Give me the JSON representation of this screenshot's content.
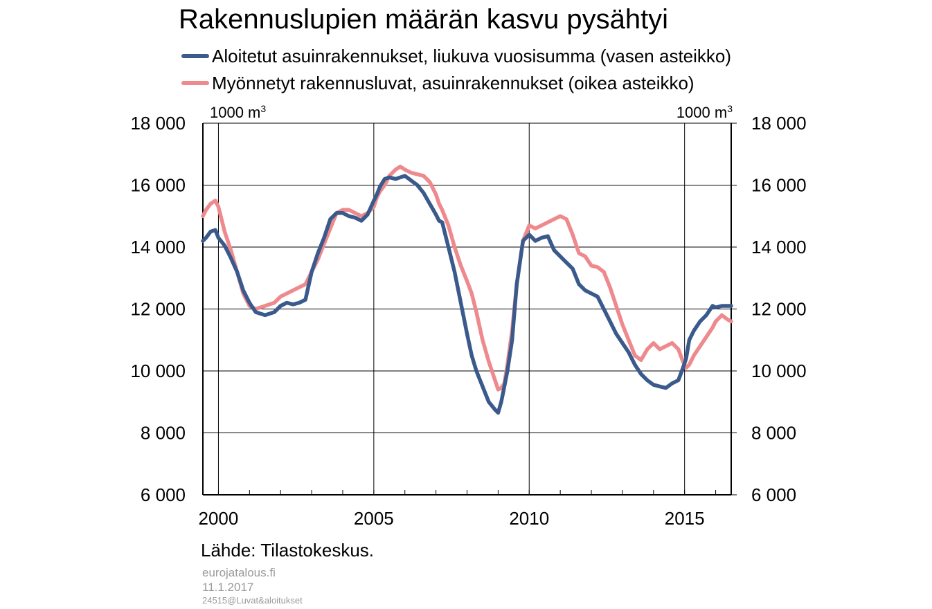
{
  "chart_data": {
    "type": "line",
    "title": "Rakennuslupien määrän kasvu pysähtyi",
    "y_left_unit": "1000 m",
    "y_right_unit": "1000 m",
    "unit_superscript": "3",
    "x_ticks": [
      "2000",
      "2005",
      "2010",
      "2015"
    ],
    "y_ticks": [
      "6 000",
      "8 000",
      "10 000",
      "12 000",
      "14 000",
      "16 000",
      "18 000"
    ],
    "ylim": [
      6000,
      18000
    ],
    "xlim": [
      1999.5,
      2016.5
    ],
    "grid": true,
    "legend_position": "top",
    "series": [
      {
        "name": "Aloitetut asuinrakennukset, liukuva vuosisumma (vasen asteikko)",
        "color": "#3b5a8c",
        "axis": "left",
        "x": [
          1999.5,
          1999.6,
          1999.75,
          1999.9,
          2000.0,
          2000.2,
          2000.4,
          2000.6,
          2000.8,
          2001.0,
          2001.2,
          2001.5,
          2001.8,
          2002.0,
          2002.2,
          2002.4,
          2002.6,
          2002.8,
          2003.0,
          2003.2,
          2003.4,
          2003.6,
          2003.8,
          2004.0,
          2004.2,
          2004.4,
          2004.6,
          2004.8,
          2005.0,
          2005.1,
          2005.2,
          2005.35,
          2005.5,
          2005.7,
          2005.85,
          2006.0,
          2006.2,
          2006.4,
          2006.6,
          2006.8,
          2007.0,
          2007.1,
          2007.2,
          2007.4,
          2007.6,
          2007.8,
          2008.0,
          2008.15,
          2008.3,
          2008.5,
          2008.7,
          2008.9,
          2009.0,
          2009.1,
          2009.2,
          2009.3,
          2009.45,
          2009.6,
          2009.8,
          2010.0,
          2010.2,
          2010.4,
          2010.6,
          2010.8,
          2011.0,
          2011.2,
          2011.4,
          2011.6,
          2011.8,
          2012.0,
          2012.2,
          2012.4,
          2012.6,
          2012.8,
          2013.0,
          2013.2,
          2013.4,
          2013.6,
          2013.8,
          2014.0,
          2014.2,
          2014.4,
          2014.6,
          2014.8,
          2014.95,
          2015.05,
          2015.15,
          2015.3,
          2015.5,
          2015.7,
          2015.9,
          2016.0,
          2016.2,
          2016.4,
          2016.5
        ],
        "y": [
          14200,
          14300,
          14500,
          14550,
          14300,
          14050,
          13650,
          13200,
          12600,
          12200,
          11900,
          11800,
          11900,
          12100,
          12200,
          12150,
          12200,
          12300,
          13200,
          13800,
          14300,
          14900,
          15100,
          15100,
          15000,
          14950,
          14850,
          15050,
          15500,
          15700,
          15950,
          16200,
          16250,
          16200,
          16250,
          16300,
          16150,
          16000,
          15750,
          15400,
          15050,
          14850,
          14800,
          14000,
          13200,
          12200,
          11200,
          10500,
          10000,
          9500,
          9000,
          8750,
          8650,
          9000,
          9500,
          10000,
          11000,
          12800,
          14200,
          14400,
          14200,
          14300,
          14350,
          13900,
          13700,
          13500,
          13300,
          12800,
          12600,
          12500,
          12400,
          12000,
          11600,
          11200,
          10900,
          10600,
          10200,
          9900,
          9700,
          9550,
          9500,
          9450,
          9600,
          9700,
          10100,
          10400,
          11000,
          11300,
          11600,
          11800,
          12100,
          12050,
          12100,
          12100,
          12100
        ]
      },
      {
        "name": "Myönnetyt rakennusluvat, asuinrakennukset (oikea asteikko)",
        "color": "#ee8a8e",
        "axis": "right",
        "x": [
          1999.5,
          1999.6,
          1999.75,
          1999.9,
          2000.0,
          2000.2,
          2000.4,
          2000.6,
          2000.8,
          2001.0,
          2001.2,
          2001.5,
          2001.8,
          2002.0,
          2002.2,
          2002.4,
          2002.6,
          2002.8,
          2003.0,
          2003.2,
          2003.4,
          2003.6,
          2003.8,
          2004.0,
          2004.2,
          2004.4,
          2004.6,
          2004.8,
          2005.0,
          2005.1,
          2005.2,
          2005.35,
          2005.5,
          2005.7,
          2005.85,
          2006.0,
          2006.2,
          2006.4,
          2006.6,
          2006.8,
          2007.0,
          2007.1,
          2007.2,
          2007.4,
          2007.6,
          2007.8,
          2008.0,
          2008.15,
          2008.3,
          2008.5,
          2008.7,
          2008.9,
          2009.0,
          2009.1,
          2009.2,
          2009.3,
          2009.45,
          2009.6,
          2009.8,
          2010.0,
          2010.2,
          2010.4,
          2010.6,
          2010.8,
          2011.0,
          2011.2,
          2011.4,
          2011.6,
          2011.8,
          2012.0,
          2012.2,
          2012.4,
          2012.6,
          2012.8,
          2013.0,
          2013.2,
          2013.4,
          2013.6,
          2013.8,
          2014.0,
          2014.2,
          2014.4,
          2014.6,
          2014.8,
          2014.95,
          2015.05,
          2015.15,
          2015.3,
          2015.5,
          2015.7,
          2015.9,
          2016.0,
          2016.2,
          2016.4,
          2016.5
        ],
        "y": [
          15000,
          15200,
          15400,
          15500,
          15300,
          14500,
          13900,
          13200,
          12500,
          12100,
          12000,
          12100,
          12200,
          12400,
          12500,
          12600,
          12700,
          12800,
          13200,
          13600,
          14100,
          14600,
          15100,
          15200,
          15200,
          15100,
          15000,
          15100,
          15300,
          15600,
          15800,
          16000,
          16300,
          16500,
          16600,
          16500,
          16400,
          16350,
          16300,
          16100,
          15700,
          15400,
          15200,
          14700,
          14000,
          13400,
          12900,
          12500,
          11900,
          11000,
          10300,
          9700,
          9400,
          9450,
          9600,
          10200,
          11300,
          12800,
          14200,
          14700,
          14600,
          14700,
          14800,
          14900,
          15000,
          14900,
          14400,
          13800,
          13700,
          13400,
          13350,
          13200,
          12700,
          12100,
          11500,
          11000,
          10500,
          10350,
          10700,
          10900,
          10700,
          10800,
          10900,
          10700,
          10300,
          10100,
          10200,
          10500,
          10800,
          11100,
          11400,
          11600,
          11800,
          11650,
          11600
        ]
      }
    ]
  },
  "source": "Lähde: Tilastokeskus.",
  "footer": {
    "site": "eurojatalous.fi",
    "date": "11.1.2017",
    "code": "24515@Luvat&aloitukset"
  }
}
